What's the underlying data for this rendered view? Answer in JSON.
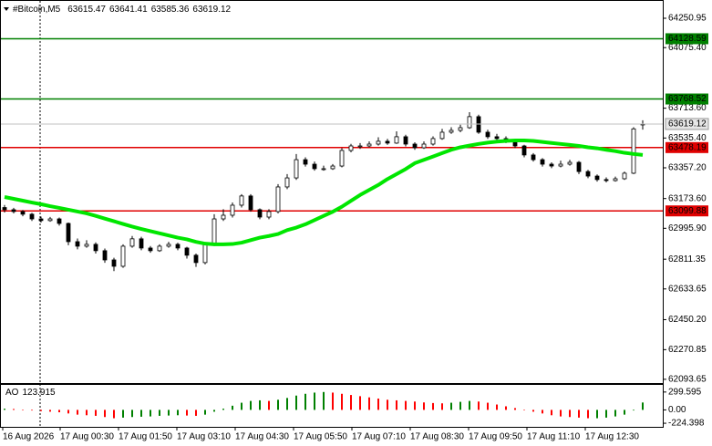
{
  "chart_data": {
    "type": "candlestick",
    "title": "#Bitcoin,M5",
    "up_color": "#ffffff",
    "down_color": "#000000",
    "outline": "#000000",
    "ohlc": [
      [
        63120,
        63135,
        63090,
        63107
      ],
      [
        63107,
        63118,
        63085,
        63096
      ],
      [
        63096,
        63105,
        63068,
        63080
      ],
      [
        63080,
        63088,
        63040,
        63052
      ],
      [
        63052,
        63066,
        63030,
        63042
      ],
      [
        63042,
        63064,
        63035,
        63052
      ],
      [
        63052,
        63060,
        63012,
        63025
      ],
      [
        63025,
        63030,
        62895,
        62916
      ],
      [
        62916,
        62935,
        62870,
        62889
      ],
      [
        62889,
        62925,
        62880,
        62900
      ],
      [
        62900,
        62912,
        62845,
        62862
      ],
      [
        62862,
        62875,
        62790,
        62807
      ],
      [
        62807,
        62820,
        62740,
        62769
      ],
      [
        62769,
        62900,
        62760,
        62889
      ],
      [
        62889,
        62950,
        62880,
        62933
      ],
      [
        62933,
        62945,
        62865,
        62878
      ],
      [
        62878,
        62890,
        62850,
        62862
      ],
      [
        62862,
        62900,
        62855,
        62889
      ],
      [
        62889,
        62915,
        62880,
        62900
      ],
      [
        62900,
        62910,
        62865,
        62878
      ],
      [
        62878,
        62885,
        62815,
        62835
      ],
      [
        62835,
        62845,
        62765,
        62791
      ],
      [
        62791,
        62910,
        62780,
        62900
      ],
      [
        62900,
        63080,
        62890,
        63052
      ],
      [
        63052,
        63110,
        63040,
        63074
      ],
      [
        63074,
        63150,
        63060,
        63134
      ],
      [
        63134,
        63200,
        63120,
        63189
      ],
      [
        63189,
        63200,
        63095,
        63107
      ],
      [
        63107,
        63115,
        63050,
        63063
      ],
      [
        63063,
        63110,
        63050,
        63096
      ],
      [
        63096,
        63260,
        63085,
        63243
      ],
      [
        63243,
        63320,
        63230,
        63297
      ],
      [
        63297,
        63440,
        63285,
        63406
      ],
      [
        63406,
        63420,
        63365,
        63379
      ],
      [
        63379,
        63395,
        63340,
        63352
      ],
      [
        63352,
        63370,
        63340,
        63352
      ],
      [
        63352,
        63380,
        63345,
        63368
      ],
      [
        63368,
        63475,
        63360,
        63461
      ],
      [
        63461,
        63500,
        63450,
        63488
      ],
      [
        63488,
        63505,
        63470,
        63488
      ],
      [
        63488,
        63515,
        63480,
        63499
      ],
      [
        63499,
        63540,
        63490,
        63516
      ],
      [
        63516,
        63530,
        63495,
        63505
      ],
      [
        63505,
        63575,
        63500,
        63543
      ],
      [
        63543,
        63555,
        63485,
        63499
      ],
      [
        63499,
        63510,
        63465,
        63477
      ],
      [
        63477,
        63515,
        63470,
        63499
      ],
      [
        63499,
        63545,
        63490,
        63532
      ],
      [
        63532,
        63590,
        63525,
        63570
      ],
      [
        63570,
        63600,
        63560,
        63581
      ],
      [
        63581,
        63615,
        63570,
        63597
      ],
      [
        63597,
        63690,
        63590,
        63663
      ],
      [
        63663,
        63675,
        63560,
        63570
      ],
      [
        63570,
        63585,
        63530,
        63543
      ],
      [
        63543,
        63560,
        63520,
        63532
      ],
      [
        63532,
        63545,
        63505,
        63516
      ],
      [
        63516,
        63525,
        63475,
        63488
      ],
      [
        63488,
        63495,
        63420,
        63434
      ],
      [
        63434,
        63445,
        63395,
        63406
      ],
      [
        63406,
        63415,
        63365,
        63379
      ],
      [
        63379,
        63390,
        63355,
        63368
      ],
      [
        63368,
        63400,
        63360,
        63379
      ],
      [
        63379,
        63405,
        63370,
        63390
      ],
      [
        63390,
        63398,
        63320,
        63335
      ],
      [
        63335,
        63345,
        63295,
        63308
      ],
      [
        63308,
        63318,
        63275,
        63287
      ],
      [
        63287,
        63300,
        63270,
        63281
      ],
      [
        63281,
        63305,
        63275,
        63292
      ],
      [
        63292,
        63335,
        63285,
        63325
      ],
      [
        63325,
        63600,
        63320,
        63590
      ],
      [
        63615.47,
        63641.41,
        63585.36,
        63619.12
      ]
    ],
    "ma": {
      "color": "#00e600",
      "values": [
        63183,
        63172,
        63161,
        63150,
        63140,
        63128,
        63118,
        63107,
        63096,
        63085,
        63070,
        63054,
        63038,
        63022,
        63006,
        62992,
        62979,
        62966,
        62953,
        62940,
        62930,
        62915,
        62904,
        62900,
        62900,
        62902,
        62910,
        62925,
        62940,
        62950,
        62962,
        62985,
        63000,
        63020,
        63045,
        63070,
        63095,
        63125,
        63160,
        63195,
        63225,
        63255,
        63290,
        63320,
        63350,
        63385,
        63405,
        63425,
        63445,
        63465,
        63480,
        63490,
        63500,
        63508,
        63514,
        63518,
        63521,
        63521,
        63518,
        63512,
        63506,
        63500,
        63494,
        63488,
        63480,
        63474,
        63465,
        63457,
        63447,
        63440,
        63434
      ]
    },
    "ylim": [
      62071.2,
      64343.6
    ],
    "yticks": [
      64250.95,
      {
        "value": 64075.4,
        "label": "64075.40"
      },
      {
        "value": 63713.6,
        "label": "63713.60"
      },
      {
        "value": 63535.4,
        "label": "63535.40"
      },
      {
        "value": 63357.2,
        "label": "63357.20"
      },
      {
        "value": 63173.6,
        "label": "63173.60"
      },
      {
        "value": 62995.9,
        "label": "62995.90"
      },
      62811.35,
      62633.65,
      {
        "value": 62450.2,
        "label": "62450.20"
      },
      62270.85,
      62093.65
    ],
    "levels": [
      {
        "value": 64128.59,
        "color": "#008000"
      },
      {
        "value": 63768.52,
        "color": "#008000"
      },
      {
        "value": 63478.19,
        "color": "#e00000"
      },
      {
        "value": 63099.88,
        "color": "#e00000"
      }
    ],
    "grid": false,
    "x_labels": [
      "16 Aug 2026",
      "17 Aug 00:30",
      "17 Aug 01:50",
      "17 Aug 03:10",
      "17 Aug 04:30",
      "17 Aug 05:50",
      "17 Aug 07:10",
      "17 Aug 08:30",
      "17 Aug 09:50",
      "17 Aug 11:10",
      "17 Aug 12:30"
    ],
    "indicator": {
      "name": "AO",
      "up_color": "#008000",
      "down_color": "#ff0000",
      "values": [
        20,
        15,
        5,
        -10,
        -20,
        -30,
        -40,
        -60,
        -80,
        -90,
        -100,
        -120,
        -140,
        -130,
        -120,
        -115,
        -110,
        -100,
        -95,
        -90,
        -95,
        -100,
        -80,
        -30,
        20,
        70,
        120,
        150,
        160,
        150,
        170,
        200,
        240,
        270,
        290,
        300,
        290,
        270,
        250,
        230,
        210,
        190,
        170,
        160,
        150,
        140,
        125,
        115,
        110,
        120,
        135,
        150,
        140,
        120,
        90,
        60,
        30,
        0,
        -30,
        -60,
        -90,
        -110,
        -120,
        -130,
        -140,
        -140,
        -130,
        -110,
        -80,
        -10,
        123.915
      ],
      "ylim": [
        -284.6,
        419.4
      ],
      "yticks": [
        299.595,
        {
          "value": 0,
          "label": "0.00"
        },
        -224.398
      ]
    }
  }
}
